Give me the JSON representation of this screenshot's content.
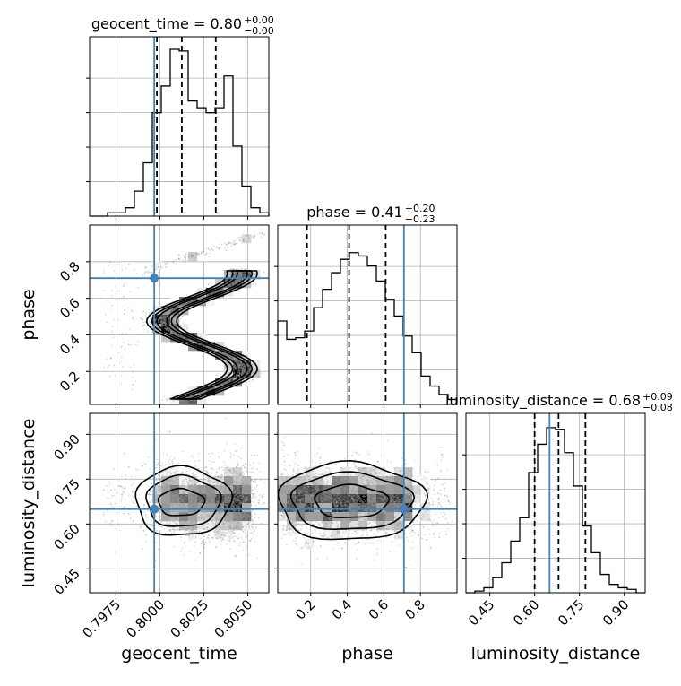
{
  "chart_data": {
    "type": "corner",
    "truths": {
      "geocent_time": 0.79968,
      "phase": 0.71,
      "luminosity_distance": 0.65
    },
    "truth_color": "#4682b4",
    "params": [
      {
        "name": "geocent_time",
        "axis_label": "geocent_time",
        "title_main": "geocent_time = 0.80",
        "title_plus": "+0.00",
        "title_minus": "−0.00",
        "range": [
          0.796,
          0.8062
        ],
        "ticks": [
          0.7975,
          0.8,
          0.8025,
          0.805
        ],
        "tick_labels": [
          "0.7975",
          "0.8000",
          "0.8025",
          "0.8050"
        ],
        "quantiles": [
          0.79983,
          0.80125,
          0.80318
        ],
        "hist": [
          0.0,
          0.0,
          0.02,
          0.02,
          0.05,
          0.15,
          0.32,
          0.62,
          0.78,
          1.0,
          0.99,
          0.69,
          0.65,
          0.62,
          0.65,
          0.84,
          0.42,
          0.18,
          0.05,
          0.02
        ]
      },
      {
        "name": "phase",
        "axis_label": "phase",
        "title_main": "phase = 0.41",
        "title_plus": "+0.20",
        "title_minus": "−0.23",
        "range": [
          0.02,
          1.0
        ],
        "ticks": [
          0.2,
          0.4,
          0.6,
          0.8
        ],
        "tick_labels": [
          "0.2",
          "0.4",
          "0.6",
          "0.8"
        ],
        "quantiles": [
          0.18,
          0.41,
          0.61
        ],
        "hist": [
          0.5,
          0.39,
          0.4,
          0.44,
          0.58,
          0.69,
          0.79,
          0.87,
          0.91,
          0.89,
          0.83,
          0.74,
          0.63,
          0.53,
          0.41,
          0.31,
          0.17,
          0.11,
          0.06,
          0.03
        ]
      },
      {
        "name": "luminosity_distance",
        "axis_label": "luminosity_distance",
        "title_main": "luminosity_distance = 0.68",
        "title_plus": "+0.09",
        "title_minus": "−0.08",
        "range": [
          0.37,
          0.97
        ],
        "ticks": [
          0.45,
          0.6,
          0.75,
          0.9
        ],
        "tick_labels": [
          "0.45",
          "0.60",
          "0.75",
          "0.90"
        ],
        "quantiles": [
          0.6,
          0.68,
          0.77
        ],
        "hist": [
          0.0,
          0.01,
          0.03,
          0.09,
          0.18,
          0.31,
          0.45,
          0.72,
          0.89,
          0.99,
          0.98,
          0.84,
          0.64,
          0.4,
          0.24,
          0.11,
          0.05,
          0.03,
          0.02,
          0.0
        ]
      }
    ],
    "grid": true
  }
}
